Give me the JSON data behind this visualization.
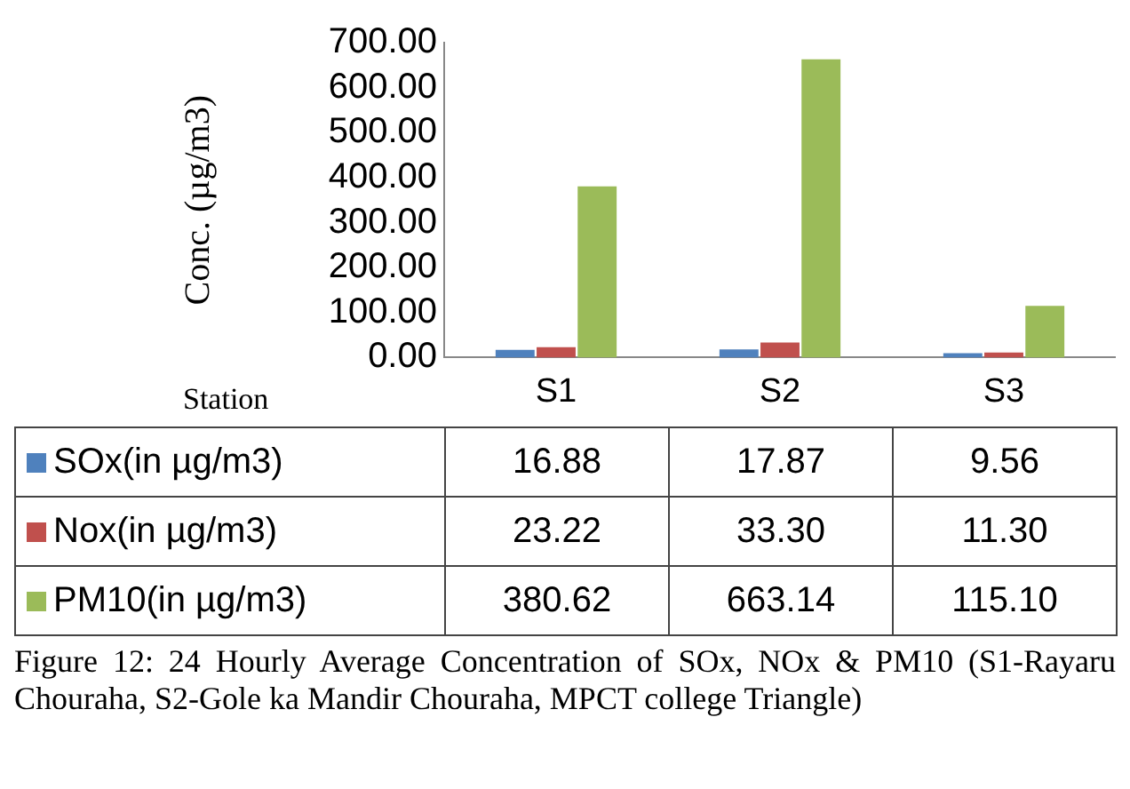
{
  "chart_data": {
    "type": "bar",
    "categories": [
      "S1",
      "S2",
      "S3"
    ],
    "series": [
      {
        "name": "SOx(in µg/m3)",
        "color": "#4f81bd",
        "values": [
          16.88,
          17.87,
          9.56
        ],
        "value_labels": [
          "16.88",
          "17.87",
          "9.56"
        ]
      },
      {
        "name": "Nox(in µg/m3)",
        "color": "#c0504d",
        "values": [
          23.22,
          33.3,
          11.3
        ],
        "value_labels": [
          "23.22",
          "33.30",
          "11.30"
        ]
      },
      {
        "name": "PM10(in µg/m3)",
        "color": "#9bbb59",
        "values": [
          380.62,
          663.14,
          115.1
        ],
        "value_labels": [
          "380.62",
          "663.14",
          "115.10"
        ]
      }
    ],
    "xlabel": "Station",
    "ylabel": "Conc. (µg/m3)",
    "ylim": [
      0,
      700
    ],
    "yticks": [
      {
        "value": 0,
        "label": "0.00"
      },
      {
        "value": 100,
        "label": "100.00"
      },
      {
        "value": 200,
        "label": "200.00"
      },
      {
        "value": 300,
        "label": "300.00"
      },
      {
        "value": 400,
        "label": "400.00"
      },
      {
        "value": 500,
        "label": "500.00"
      },
      {
        "value": 600,
        "label": "600.00"
      },
      {
        "value": 700,
        "label": "700.00"
      }
    ],
    "grid": false,
    "legend": "bottom",
    "annotations": [
      "Figure 12: 24 Hourly Average Concentration of SOx, NOx & PM10 (S1-Rayaru Chouraha, S2-Gole ka Mandir Chouraha, MPCT college Triangle)"
    ]
  }
}
